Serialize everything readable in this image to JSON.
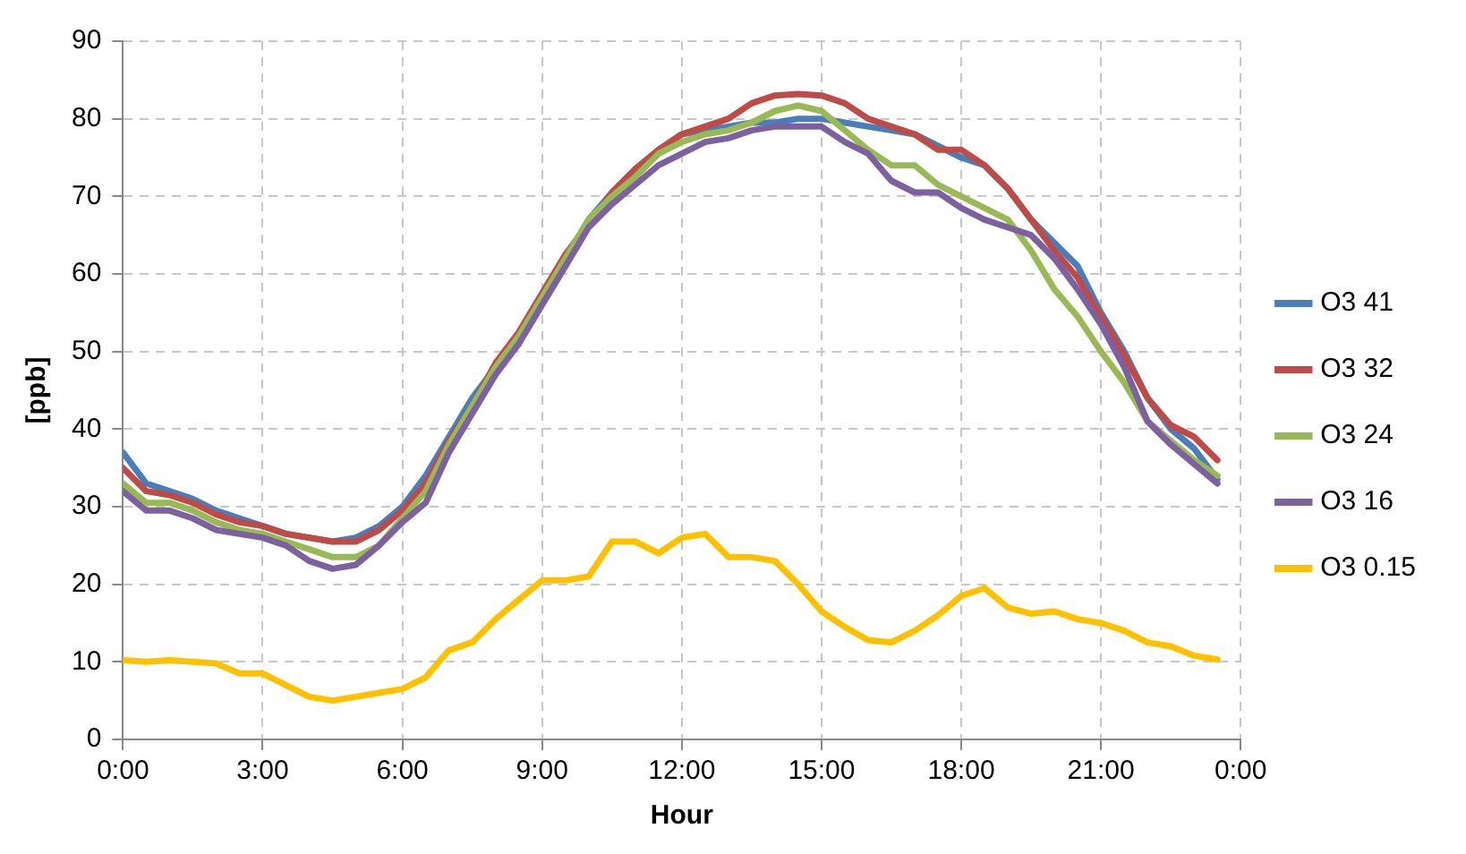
{
  "chart_data": {
    "type": "line",
    "xlabel": "Hour",
    "ylabel": "[ppb]",
    "x": [
      0,
      0.5,
      1,
      1.5,
      2,
      2.5,
      3,
      3.5,
      4,
      4.5,
      5,
      5.5,
      6,
      6.5,
      7,
      7.5,
      8,
      8.5,
      9,
      9.5,
      10,
      10.5,
      11,
      11.5,
      12,
      12.5,
      13,
      13.5,
      14,
      14.5,
      15,
      15.5,
      16,
      16.5,
      17,
      17.5,
      18,
      18.5,
      19,
      19.5,
      20,
      20.5,
      21,
      21.5,
      22,
      22.5,
      23,
      23.5
    ],
    "series": [
      {
        "name": "O3 41",
        "color": "#4a7ebb",
        "values": [
          37,
          33,
          32,
          31,
          29.5,
          28.5,
          27.5,
          26.5,
          26,
          25.5,
          26,
          27.5,
          30,
          34,
          39,
          44,
          48,
          51,
          57,
          62,
          67,
          70.5,
          73.5,
          76,
          78,
          78.5,
          79,
          79.5,
          79.5,
          80,
          80,
          79.5,
          79,
          78.5,
          78,
          76.5,
          75,
          74,
          71,
          67,
          64,
          61,
          55,
          50,
          44,
          40,
          37.5,
          33.5
        ]
      },
      {
        "name": "O3 32",
        "color": "#be4b48",
        "values": [
          35,
          32,
          31.5,
          30.5,
          29,
          28,
          27.5,
          26.5,
          26,
          25.5,
          25.5,
          27,
          29.5,
          33,
          38.5,
          43,
          48.5,
          52.5,
          57.5,
          62.5,
          66.5,
          70.5,
          73.5,
          76,
          78,
          79,
          80,
          82,
          83,
          83.2,
          83,
          82,
          80,
          79,
          78,
          76,
          76,
          74,
          71,
          67,
          63,
          59.5,
          54.5,
          49.5,
          44,
          40.5,
          39,
          36
        ]
      },
      {
        "name": "O3 24",
        "color": "#98b954",
        "values": [
          33,
          30.5,
          30.5,
          29.5,
          28,
          27,
          26.5,
          25.5,
          24.5,
          23.5,
          23.5,
          25,
          28.5,
          32,
          38,
          43,
          48,
          52,
          57,
          62,
          67,
          70,
          72.5,
          75.5,
          77,
          78,
          78.5,
          79.5,
          81,
          81.7,
          81,
          78.5,
          76,
          74,
          74,
          71.5,
          70,
          68.5,
          67,
          63,
          58,
          54.5,
          50,
          46,
          41,
          38.5,
          36,
          34
        ]
      },
      {
        "name": "O3 16",
        "color": "#7d60a0",
        "values": [
          32,
          29.5,
          29.5,
          28.5,
          27,
          26.5,
          26,
          25,
          23,
          22,
          22.5,
          25,
          28,
          30.5,
          37,
          42,
          47,
          51,
          56,
          61,
          66,
          69,
          71.5,
          74,
          75.5,
          77,
          77.5,
          78.5,
          79,
          79,
          79,
          77,
          75.5,
          72,
          70.5,
          70.5,
          68.5,
          67,
          66,
          65,
          62,
          58,
          53.5,
          48,
          41,
          38,
          35.5,
          33
        ]
      },
      {
        "name": "O3 0.15",
        "color": "#ffc000",
        "values": [
          10.2,
          10,
          10.2,
          10,
          9.8,
          8.5,
          8.5,
          7,
          5.5,
          5,
          5.5,
          6,
          6.5,
          8,
          11.5,
          12.5,
          15.5,
          18,
          20.5,
          20.5,
          21,
          25.5,
          25.5,
          24,
          26,
          26.5,
          23.5,
          23.5,
          23,
          20,
          16.5,
          14.5,
          12.8,
          12.5,
          14,
          16,
          18.5,
          19.5,
          17,
          16.2,
          16.5,
          15.5,
          15,
          14,
          12.5,
          12,
          10.8,
          10.3
        ]
      }
    ],
    "xlim": [
      0,
      24
    ],
    "xticks": [
      {
        "value": 0,
        "label": "0:00"
      },
      {
        "value": 3,
        "label": "3:00"
      },
      {
        "value": 6,
        "label": "6:00"
      },
      {
        "value": 9,
        "label": "9:00"
      },
      {
        "value": 12,
        "label": "12:00"
      },
      {
        "value": 15,
        "label": "15:00"
      },
      {
        "value": 18,
        "label": "18:00"
      },
      {
        "value": 21,
        "label": "21:00"
      },
      {
        "value": 24,
        "label": "0:00"
      }
    ],
    "ylim": [
      0,
      90
    ],
    "yticks": [
      0,
      10,
      20,
      30,
      40,
      50,
      60,
      70,
      80,
      90
    ],
    "grid": true,
    "legend": "right",
    "marker": "none",
    "line_style": "solid"
  }
}
